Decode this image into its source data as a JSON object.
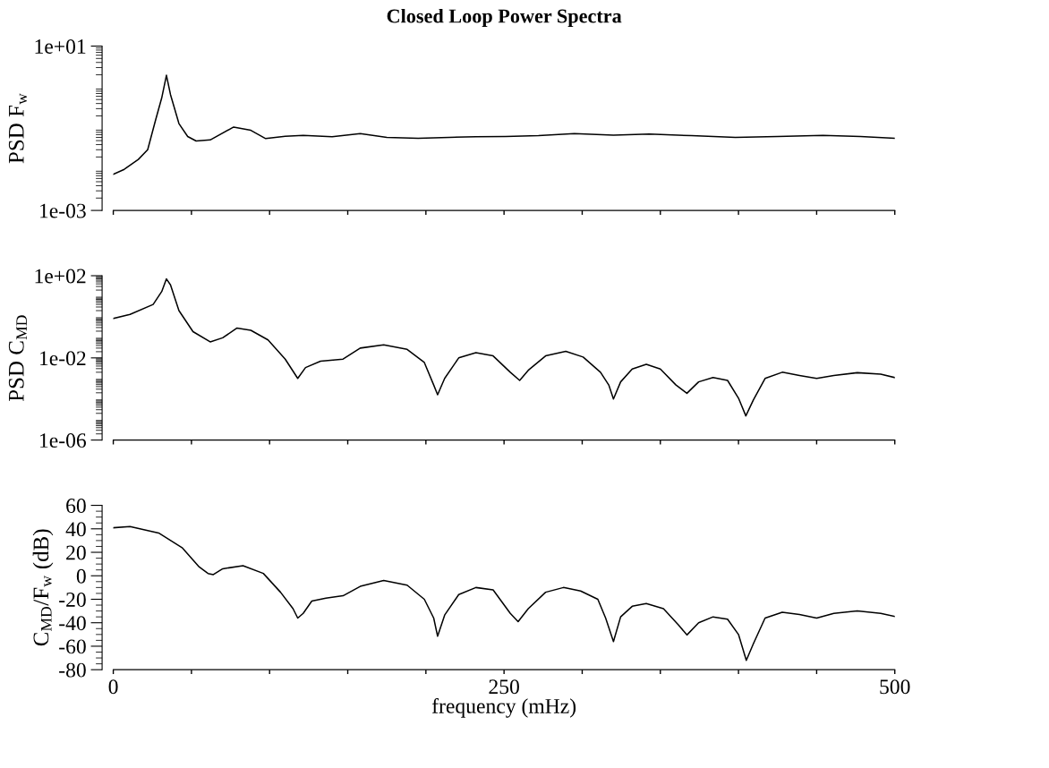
{
  "chart_data": [
    {
      "type": "line",
      "title": "Closed Loop Power Spectra",
      "ylabel": "PSD F$_{w}$",
      "log": true,
      "tick_labels": "y",
      "xlim": [
        0,
        500
      ],
      "xticks": [
        {
          "value": 0,
          "label": null
        },
        {
          "value": 50,
          "label": null
        },
        {
          "value": 100,
          "label": null
        },
        {
          "value": 150,
          "label": null
        },
        {
          "value": 200,
          "label": null
        },
        {
          "value": 250,
          "label": null
        },
        {
          "value": 300,
          "label": null
        },
        {
          "value": 350,
          "label": null
        },
        {
          "value": 400,
          "label": null
        },
        {
          "value": 450,
          "label": null
        },
        {
          "value": 500,
          "label": null
        }
      ],
      "ylim": [
        0.001,
        10
      ],
      "yticks": [
        {
          "value": 0.001,
          "label": "1e-03"
        },
        {
          "value": 10,
          "label": "1e+01"
        }
      ],
      "series": [
        {
          "color": "#000000",
          "x": [
            0,
            7,
            16,
            22,
            27,
            31,
            34,
            36.6,
            42,
            47.6,
            53,
            62,
            77,
            88,
            97.5,
            110,
            121.5,
            140,
            158,
            175,
            195,
            215,
            232,
            251,
            272,
            295,
            320,
            343,
            370,
            398,
            425,
            454,
            478,
            500
          ],
          "values": [
            0.0076,
            0.01,
            0.0174,
            0.03,
            0.155,
            0.55,
            1.95,
            0.66,
            0.13,
            0.063,
            0.049,
            0.052,
            0.107,
            0.089,
            0.056,
            0.064,
            0.067,
            0.062,
            0.074,
            0.06,
            0.057,
            0.06,
            0.062,
            0.063,
            0.066,
            0.074,
            0.068,
            0.072,
            0.066,
            0.06,
            0.063,
            0.067,
            0.063,
            0.057
          ]
        }
      ]
    },
    {
      "type": "line",
      "ylabel": "PSD C$_{MD}$",
      "log": true,
      "tick_labels": "y",
      "xlim": [
        0,
        500
      ],
      "xticks": [
        {
          "value": 0,
          "label": null
        },
        {
          "value": 50,
          "label": null
        },
        {
          "value": 100,
          "label": null
        },
        {
          "value": 150,
          "label": null
        },
        {
          "value": 200,
          "label": null
        },
        {
          "value": 250,
          "label": null
        },
        {
          "value": 300,
          "label": null
        },
        {
          "value": 350,
          "label": null
        },
        {
          "value": 400,
          "label": null
        },
        {
          "value": 450,
          "label": null
        },
        {
          "value": 500,
          "label": null
        }
      ],
      "ylim": [
        1e-06,
        100
      ],
      "yticks": [
        {
          "value": 1e-06,
          "label": "1e-06"
        },
        {
          "value": 0.01,
          "label": "1e-02"
        },
        {
          "value": 100,
          "label": "1e+02"
        }
      ],
      "series": [
        {
          "color": "#000000",
          "x": [
            0,
            10.7,
            25.5,
            31,
            34,
            36.6,
            42,
            51,
            62,
            70,
            79,
            88,
            99,
            110,
            118,
            123,
            132.6,
            147,
            158,
            173,
            188,
            199,
            205,
            207.5,
            212,
            221,
            232,
            243,
            254,
            260,
            265.5,
            276.6,
            289.5,
            300.6,
            311.7,
            317,
            320,
            324.6,
            332,
            341,
            350,
            360,
            367,
            374.5,
            383.7,
            393,
            400,
            404.7,
            409.5,
            417,
            428,
            439,
            450,
            461,
            476,
            491,
            500
          ],
          "values": [
            0.83,
            1.3,
            4,
            17,
            70,
            36,
            2,
            0.19,
            0.06,
            0.095,
            0.28,
            0.22,
            0.075,
            0.0087,
            0.001,
            0.0034,
            0.0069,
            0.0087,
            0.03,
            0.043,
            0.026,
            0.006,
            0.00048,
            0.00016,
            0.001,
            0.01,
            0.018,
            0.0125,
            0.002,
            0.0008,
            0.0025,
            0.0125,
            0.021,
            0.011,
            0.002,
            0.00048,
            0.0001,
            0.00068,
            0.0029,
            0.0049,
            0.0029,
            0.00048,
            0.00019,
            0.00068,
            0.0011,
            0.0008,
            0.00011,
            1.5e-05,
            8.9e-05,
            0.001,
            0.002,
            0.0014,
            0.001,
            0.0014,
            0.0019,
            0.0016,
            0.0011
          ]
        }
      ]
    },
    {
      "type": "line",
      "ylabel": "C$_{MD}$/F$_{w}$ (dB)",
      "xlabel": "frequency (mHz)",
      "xlim": [
        0,
        500
      ],
      "xticks": [
        {
          "value": 0,
          "label": "0"
        },
        {
          "value": 50,
          "label": null
        },
        {
          "value": 100,
          "label": null
        },
        {
          "value": 150,
          "label": null
        },
        {
          "value": 200,
          "label": null
        },
        {
          "value": 250,
          "label": "250"
        },
        {
          "value": 300,
          "label": null
        },
        {
          "value": 350,
          "label": null
        },
        {
          "value": 400,
          "label": null
        },
        {
          "value": 450,
          "label": null
        },
        {
          "value": 500,
          "label": "500"
        }
      ],
      "ylim": [
        -80,
        60
      ],
      "yticks": [
        -80,
        -60,
        -40,
        -20,
        0,
        20,
        40,
        60
      ],
      "series": [
        {
          "color": "#000000",
          "x": [
            0,
            10.7,
            29,
            44,
            55,
            60.6,
            64,
            70,
            83,
            96,
            107,
            115,
            118,
            121.5,
            127,
            136,
            147,
            158,
            173,
            188,
            199,
            205,
            207.5,
            212,
            221,
            232,
            243,
            254,
            259,
            265.5,
            276.6,
            288,
            299,
            310,
            315,
            320,
            324.6,
            332,
            341,
            352,
            361.5,
            367,
            374.5,
            383.7,
            393,
            400,
            405,
            409.5,
            417,
            428,
            439,
            450,
            461,
            476,
            491,
            500
          ],
          "values": [
            40.9,
            42,
            36.5,
            24,
            7.5,
            2,
            1,
            6,
            8.6,
            2,
            -14,
            -28,
            -36,
            -32,
            -21.5,
            -19,
            -17,
            -9,
            -4,
            -8,
            -20,
            -36,
            -51.5,
            -33.5,
            -16,
            -10,
            -12,
            -32,
            -39,
            -28,
            -14,
            -10,
            -13,
            -20,
            -36,
            -56,
            -35,
            -26,
            -23.6,
            -28,
            -41.7,
            -50.4,
            -40,
            -35,
            -37,
            -50,
            -72,
            -58,
            -36,
            -31,
            -33,
            -36,
            -32,
            -30,
            -32,
            -34.6
          ]
        }
      ]
    }
  ]
}
